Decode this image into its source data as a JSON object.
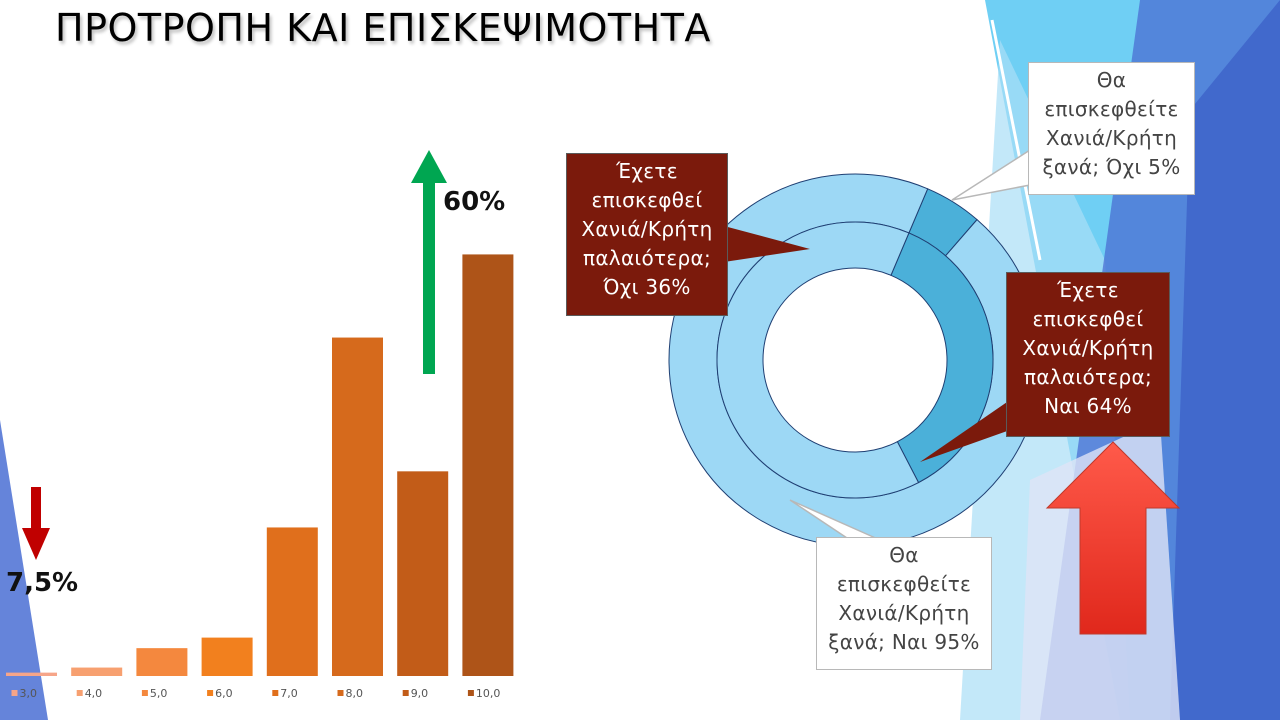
{
  "slide": {
    "title": "ΠΡΟΤΡΟΠΗ ΚΑΙ ΕΠΙΣΚΕΨΙΜΟΤΗΤΑ"
  },
  "colors": {
    "up_arrow_green": "#00a651",
    "down_arrow_red": "#c00000",
    "big_arrow_red": "#ff3b2f",
    "callout_dark": "#7b1a0c",
    "donut_light": "#9dd8f5",
    "donut_dark": "#4bb0d9",
    "donut_edge": "#1f3f73"
  },
  "annotations": {
    "low_share": "7,5%",
    "high_share": "60%"
  },
  "callouts": {
    "past_no": [
      "Έχετε",
      "επισκεφθεί",
      "Χανιά/Κρήτη",
      "παλαιότερα;",
      "Όχι 36%"
    ],
    "past_yes": [
      "Έχετε",
      "επισκεφθεί",
      "Χανιά/Κρήτη",
      "παλαιότερα;",
      "Ναι 64%"
    ],
    "again_no": [
      "Θα",
      "επισκεφθείτε",
      "Χανιά/Κρήτη",
      "ξανά; Όχι 5%"
    ],
    "again_yes": [
      "Θα",
      "επισκεφθείτε",
      "Χανιά/Κρήτη",
      "ξανά; Ναι 95%"
    ]
  },
  "chart_data": [
    {
      "type": "bar",
      "categories": [
        "3,0",
        "4,0",
        "5,0",
        "6,0",
        "7,0",
        "8,0",
        "9,0",
        "10,0"
      ],
      "values": [
        0.8,
        2.0,
        6.6,
        9.1,
        35.2,
        80.2,
        48.5,
        99.9
      ],
      "colors": [
        "#f6a589",
        "#f7a070",
        "#f4883e",
        "#f2801e",
        "#e06f1c",
        "#d66a1c",
        "#c25c18",
        "#ae5418"
      ],
      "ylim": [
        0,
        100
      ],
      "legend": "bottom",
      "grid": false
    },
    {
      "type": "pie",
      "rings": [
        {
          "series": [
            {
              "name": "Θα επισκεφθείτε Χανιά/Κρήτη ξανά; Όχι",
              "value": 5
            },
            {
              "name": "Θα επισκεφθείτε Χανιά/Κρήτη ξανά; Ναι",
              "value": 95
            }
          ]
        },
        {
          "series": [
            {
              "name": "Έχετε επισκεφθεί Χανιά/Κρήτη παλαιότερα; Όχι",
              "value": 36
            },
            {
              "name": "Έχετε επισκεφθεί Χανιά/Κρήτη παλαιότερα; Ναι",
              "value": 64
            }
          ]
        }
      ]
    }
  ]
}
